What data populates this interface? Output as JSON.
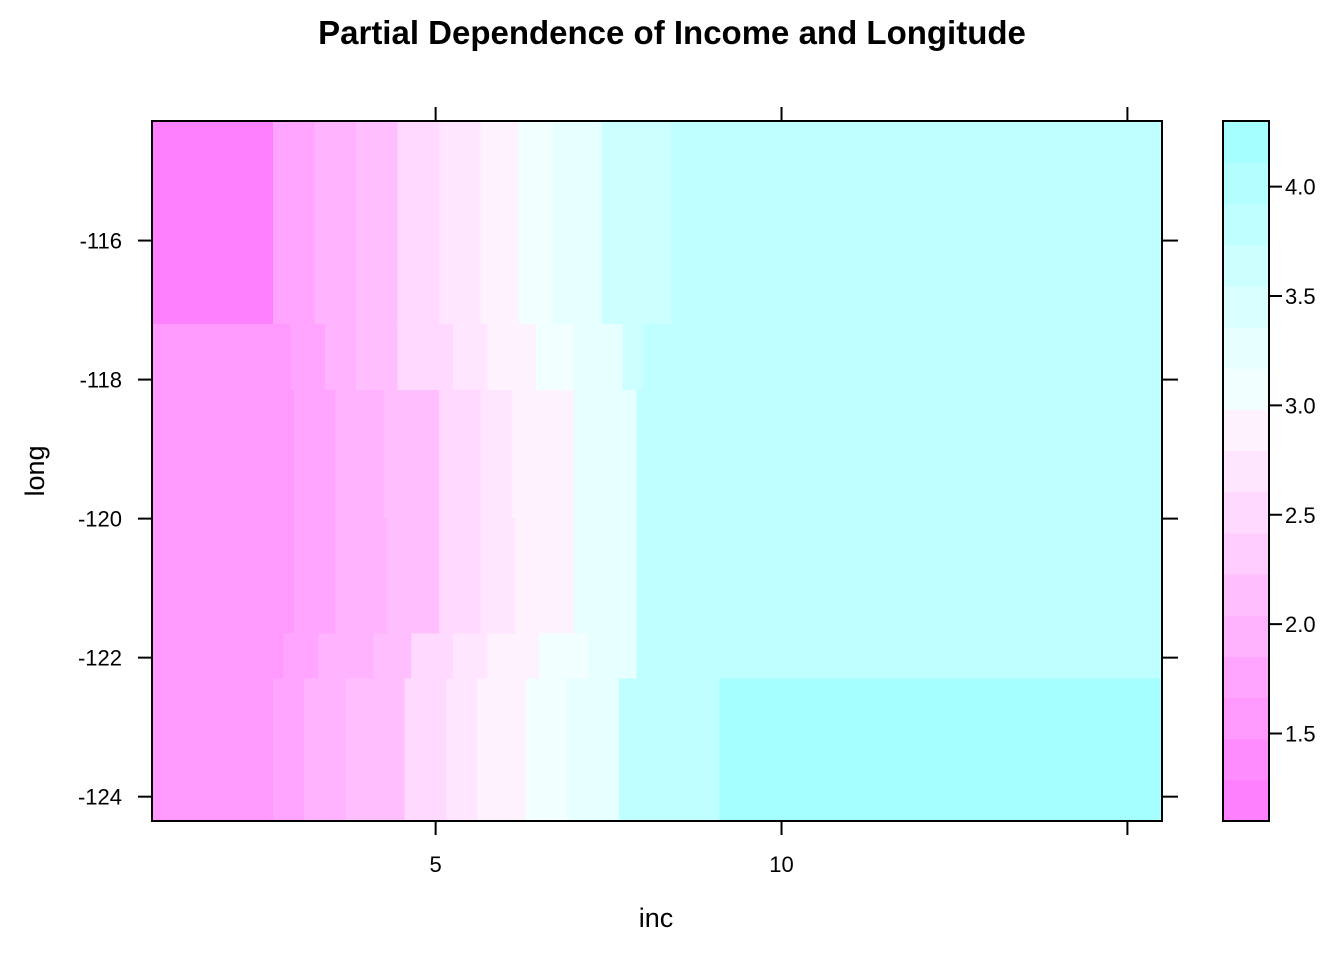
{
  "chart_data": {
    "type": "heatmap",
    "title": "Partial Dependence  of Income and Longitude",
    "xlabel": "inc",
    "ylabel": "long",
    "xlim": [
      0.9,
      15.5
    ],
    "ylim": [
      -124.35,
      -114.28
    ],
    "x_ticks": [
      5,
      10,
      15
    ],
    "x_tick_labels": [
      "5",
      "10",
      ""
    ],
    "y_ticks": [
      -116,
      -118,
      -120,
      -122,
      -124
    ],
    "y_tick_labels": [
      "-116",
      "-118",
      "-120",
      "-122",
      "-124"
    ],
    "colorbar": {
      "range": [
        1.1,
        4.3
      ],
      "breaks": [
        1.1,
        1.2882,
        1.4765,
        1.6647,
        1.8529,
        2.0412,
        2.2294,
        2.4176,
        2.6059,
        2.7941,
        2.9824,
        3.1706,
        3.3588,
        3.5471,
        3.7353,
        3.9235,
        4.1118,
        4.3
      ],
      "ticks": [
        1.5,
        2.0,
        2.5,
        3.0,
        3.5,
        4.0
      ],
      "tick_labels": [
        "1.5",
        "2.0",
        "2.5",
        "3.0",
        "3.5",
        "4.0"
      ],
      "colors": [
        "#FF80FF",
        "#FF8CFF",
        "#FF99FF",
        "#FFA5FF",
        "#FFB3FF",
        "#FFBFFF",
        "#FFCCFF",
        "#FFD9FF",
        "#FFE5FF",
        "#FFF2FF",
        "#F2FFFF",
        "#E6FFFF",
        "#D9FFFF",
        "#CCFFFF",
        "#BFFFFF",
        "#B3FFFF",
        "#A6FFFF",
        "#80FFFF"
      ]
    },
    "rows": [
      {
        "long_from": -114.28,
        "long_to": -117.2,
        "cells": [
          [
            0.9,
            2.65,
            1.2
          ],
          [
            2.65,
            3.25,
            1.8
          ],
          [
            3.25,
            3.85,
            2.0
          ],
          [
            3.85,
            4.45,
            2.2
          ],
          [
            4.45,
            5.05,
            2.45
          ],
          [
            5.05,
            5.65,
            2.7
          ],
          [
            5.65,
            6.2,
            2.9
          ],
          [
            6.2,
            6.7,
            3.15
          ],
          [
            6.7,
            7.4,
            3.35
          ],
          [
            7.4,
            8.4,
            3.6
          ],
          [
            8.4,
            15.5,
            3.85
          ]
        ]
      },
      {
        "long_from": -117.2,
        "long_to": -118.15,
        "cells": [
          [
            0.9,
            2.9,
            1.55
          ],
          [
            2.9,
            3.4,
            1.8
          ],
          [
            3.4,
            3.85,
            2.0
          ],
          [
            3.85,
            4.45,
            2.2
          ],
          [
            4.45,
            5.25,
            2.45
          ],
          [
            5.25,
            5.75,
            2.7
          ],
          [
            5.75,
            6.45,
            2.95
          ],
          [
            6.45,
            7.0,
            3.15
          ],
          [
            7.0,
            7.7,
            3.35
          ],
          [
            7.7,
            8.0,
            3.6
          ],
          [
            8.0,
            15.5,
            3.85
          ]
        ]
      },
      {
        "long_from": -118.15,
        "long_to": -120.0,
        "cells": [
          [
            0.9,
            2.95,
            1.55
          ],
          [
            2.95,
            3.55,
            1.8
          ],
          [
            3.55,
            4.25,
            2.0
          ],
          [
            4.25,
            5.05,
            2.2
          ],
          [
            5.05,
            5.65,
            2.45
          ],
          [
            5.65,
            6.1,
            2.75
          ],
          [
            6.1,
            7.0,
            2.95
          ],
          [
            7.0,
            7.9,
            3.2
          ],
          [
            7.9,
            15.5,
            3.85
          ]
        ]
      },
      {
        "long_from": -120.0,
        "long_to": -121.65,
        "cells": [
          [
            0.9,
            2.95,
            1.55
          ],
          [
            2.95,
            3.55,
            1.8
          ],
          [
            3.55,
            4.3,
            2.0
          ],
          [
            4.3,
            5.05,
            2.2
          ],
          [
            5.05,
            5.65,
            2.45
          ],
          [
            5.65,
            6.15,
            2.75
          ],
          [
            6.15,
            7.0,
            2.95
          ],
          [
            7.0,
            7.9,
            3.2
          ],
          [
            7.9,
            15.5,
            3.85
          ]
        ]
      },
      {
        "long_from": -121.65,
        "long_to": -122.3,
        "cells": [
          [
            0.9,
            2.8,
            1.55
          ],
          [
            2.8,
            3.3,
            1.8
          ],
          [
            3.3,
            4.1,
            2.0
          ],
          [
            4.1,
            4.65,
            2.2
          ],
          [
            4.65,
            5.25,
            2.45
          ],
          [
            5.25,
            5.75,
            2.7
          ],
          [
            5.75,
            6.5,
            2.95
          ],
          [
            6.5,
            7.2,
            3.15
          ],
          [
            7.2,
            7.9,
            3.35
          ],
          [
            7.9,
            15.5,
            3.85
          ]
        ]
      },
      {
        "long_from": -122.3,
        "long_to": -124.35,
        "cells": [
          [
            0.9,
            2.65,
            1.55
          ],
          [
            2.65,
            3.1,
            1.8
          ],
          [
            3.1,
            3.7,
            2.0
          ],
          [
            3.7,
            4.55,
            2.2
          ],
          [
            4.55,
            5.15,
            2.45
          ],
          [
            5.15,
            5.6,
            2.7
          ],
          [
            5.6,
            6.3,
            2.95
          ],
          [
            6.3,
            6.9,
            3.15
          ],
          [
            6.9,
            7.65,
            3.35
          ],
          [
            7.65,
            9.1,
            3.85
          ],
          [
            9.1,
            15.5,
            4.2
          ]
        ]
      }
    ]
  }
}
